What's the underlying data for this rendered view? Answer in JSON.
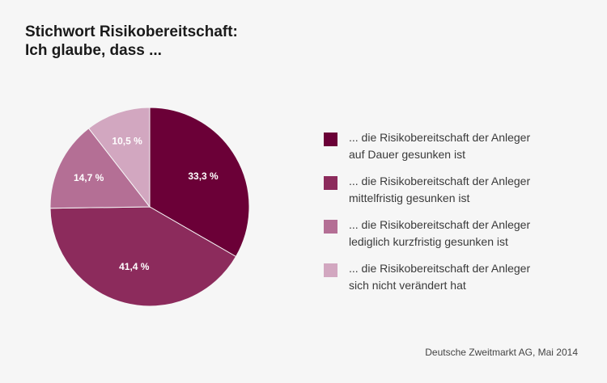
{
  "title": {
    "line1": "Stichwort Risikobereitschaft:",
    "line2": "Ich glaube, dass ..."
  },
  "chart_data": {
    "type": "pie",
    "values": [
      33.3,
      41.4,
      14.7,
      10.5
    ],
    "value_labels": [
      "33,3 %",
      "41,4 %",
      "14,7 %",
      "10,5 %"
    ],
    "colors": [
      "#6b0037",
      "#8c2b5c",
      "#b46f95",
      "#d2a7c0"
    ],
    "legend": [
      {
        "line1": "... die Risikobereitschaft der Anleger",
        "line2": "auf Dauer gesunken ist"
      },
      {
        "line1": "... die Risikobereitschaft der Anleger",
        "line2": "mittelfristig gesunken ist"
      },
      {
        "line1": "... die Risikobereitschaft der Anleger",
        "line2": "lediglich kurzfristig gesunken ist"
      },
      {
        "line1": "... die Risikobereitschaft der Anleger",
        "line2": "sich nicht verändert hat"
      }
    ],
    "legend_position": "right",
    "start_angle": "12 o'clock",
    "direction": "clockwise"
  },
  "source": "Deutsche Zweitmarkt AG, Mai 2014"
}
